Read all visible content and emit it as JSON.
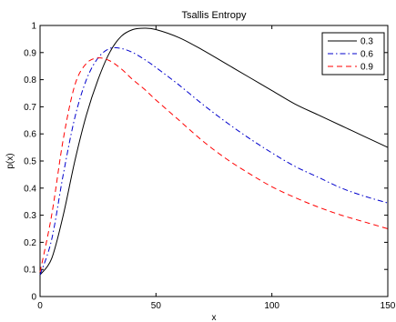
{
  "chart_data": {
    "type": "line",
    "title": "Tsallis Entropy",
    "xlabel": "x",
    "ylabel": "p(x)",
    "xlim": [
      0,
      150
    ],
    "ylim": [
      0,
      1
    ],
    "xticks": [
      "0",
      "50",
      "100",
      "150"
    ],
    "yticks": [
      "0",
      "0.1",
      "0.2",
      "0.3",
      "0.4",
      "0.5",
      "0.6",
      "0.7",
      "0.8",
      "0.9",
      "1"
    ],
    "grid": false,
    "legend_position": "top-right",
    "series": [
      {
        "name": "0.3",
        "color": "#000000",
        "dash": "solid",
        "x": [
          0,
          5,
          10,
          15,
          20,
          25,
          30,
          35,
          40,
          45,
          50,
          60,
          70,
          80,
          90,
          100,
          110,
          120,
          130,
          140,
          150
        ],
        "y": [
          0.08,
          0.14,
          0.3,
          0.5,
          0.67,
          0.8,
          0.9,
          0.96,
          0.985,
          0.99,
          0.985,
          0.955,
          0.91,
          0.86,
          0.81,
          0.76,
          0.71,
          0.67,
          0.63,
          0.59,
          0.55
        ]
      },
      {
        "name": "0.6",
        "color": "#0000cc",
        "dash": "dashdot",
        "x": [
          0,
          5,
          10,
          15,
          20,
          25,
          30,
          35,
          40,
          45,
          50,
          60,
          70,
          80,
          90,
          100,
          110,
          120,
          130,
          140,
          150
        ],
        "y": [
          0.08,
          0.21,
          0.45,
          0.66,
          0.8,
          0.88,
          0.915,
          0.915,
          0.9,
          0.875,
          0.845,
          0.78,
          0.71,
          0.645,
          0.585,
          0.53,
          0.48,
          0.44,
          0.4,
          0.37,
          0.345
        ]
      },
      {
        "name": "0.9",
        "color": "#ff0000",
        "dash": "dashed",
        "x": [
          0,
          5,
          10,
          15,
          20,
          25,
          30,
          35,
          40,
          45,
          50,
          60,
          70,
          80,
          90,
          100,
          110,
          120,
          130,
          140,
          150
        ],
        "y": [
          0.09,
          0.3,
          0.58,
          0.78,
          0.86,
          0.88,
          0.87,
          0.84,
          0.8,
          0.765,
          0.725,
          0.65,
          0.575,
          0.51,
          0.455,
          0.405,
          0.365,
          0.33,
          0.3,
          0.275,
          0.25
        ]
      }
    ]
  }
}
